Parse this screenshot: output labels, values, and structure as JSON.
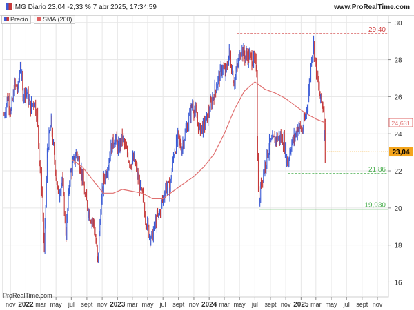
{
  "header": {
    "title": "IMG Diario 23,04 -2,33 % 7 abr 2025, 17:34:59",
    "brand": "www.ProRealTime.com"
  },
  "legend": {
    "items": [
      {
        "label": "Precio",
        "color": "#3b5bd6"
      },
      {
        "label": "SMA (200)",
        "color": "#e06060"
      }
    ]
  },
  "footer": {
    "watermark": "ProRealTime.com"
  },
  "colors": {
    "up": "#3b5bd6",
    "down": "#c63a3a",
    "sma": "#e07070",
    "grid": "#e6e6e6",
    "ref_red": "#d04040",
    "ref_green": "#4caf50",
    "last_price_bg": "#f4a51c"
  },
  "chart_data": {
    "type": "line",
    "x_axis": {
      "range": [
        "2021-10-01",
        "2025-12-15"
      ],
      "ticks": [
        {
          "x": "2021-11-01",
          "label": "nov",
          "bold": false
        },
        {
          "x": "2022-01-01",
          "label": "2022",
          "bold": true
        },
        {
          "x": "2022-03-01",
          "label": "mar",
          "bold": false
        },
        {
          "x": "2022-05-01",
          "label": "may",
          "bold": false
        },
        {
          "x": "2022-07-01",
          "label": "jul",
          "bold": false
        },
        {
          "x": "2022-09-01",
          "label": "sept",
          "bold": false
        },
        {
          "x": "2022-11-01",
          "label": "nov",
          "bold": false
        },
        {
          "x": "2023-01-01",
          "label": "2023",
          "bold": true
        },
        {
          "x": "2023-03-01",
          "label": "mar",
          "bold": false
        },
        {
          "x": "2023-05-01",
          "label": "may",
          "bold": false
        },
        {
          "x": "2023-07-01",
          "label": "jul",
          "bold": false
        },
        {
          "x": "2023-09-01",
          "label": "sept",
          "bold": false
        },
        {
          "x": "2023-11-01",
          "label": "nov",
          "bold": false
        },
        {
          "x": "2024-01-01",
          "label": "2024",
          "bold": true
        },
        {
          "x": "2024-03-01",
          "label": "mar",
          "bold": false
        },
        {
          "x": "2024-05-01",
          "label": "may",
          "bold": false
        },
        {
          "x": "2024-07-01",
          "label": "jul",
          "bold": false
        },
        {
          "x": "2024-09-01",
          "label": "sept",
          "bold": false
        },
        {
          "x": "2024-11-01",
          "label": "nov",
          "bold": false
        },
        {
          "x": "2025-01-01",
          "label": "2025",
          "bold": true
        },
        {
          "x": "2025-03-01",
          "label": "mar",
          "bold": false
        },
        {
          "x": "2025-05-01",
          "label": "may",
          "bold": false
        },
        {
          "x": "2025-07-01",
          "label": "jul",
          "bold": false
        },
        {
          "x": "2025-09-01",
          "label": "sept",
          "bold": false
        },
        {
          "x": "2025-11-01",
          "label": "nov",
          "bold": false
        }
      ]
    },
    "y_axis": {
      "range": [
        15.2,
        30.4
      ],
      "ticks": [
        16,
        18,
        20,
        22,
        24,
        26,
        28,
        30
      ]
    },
    "grid": true,
    "series": [
      {
        "name": "Precio",
        "style": "ohlc-bars",
        "points": [
          [
            "2021-10-06",
            25.0
          ],
          [
            "2021-10-20",
            26.0
          ],
          [
            "2021-11-03",
            25.2
          ],
          [
            "2021-11-17",
            26.6
          ],
          [
            "2021-12-01",
            26.4
          ],
          [
            "2021-12-10",
            27.8
          ],
          [
            "2021-12-20",
            26.2
          ],
          [
            "2022-01-05",
            26.2
          ],
          [
            "2022-01-20",
            25.4
          ],
          [
            "2022-02-03",
            25.8
          ],
          [
            "2022-02-14",
            25.0
          ],
          [
            "2022-02-24",
            22.6
          ],
          [
            "2022-03-07",
            20.8
          ],
          [
            "2022-03-15",
            17.6
          ],
          [
            "2022-03-28",
            23.2
          ],
          [
            "2022-04-12",
            24.6
          ],
          [
            "2022-04-25",
            22.6
          ],
          [
            "2022-05-10",
            20.6
          ],
          [
            "2022-05-25",
            21.6
          ],
          [
            "2022-06-10",
            18.6
          ],
          [
            "2022-06-24",
            21.6
          ],
          [
            "2022-07-08",
            22.4
          ],
          [
            "2022-07-22",
            23.0
          ],
          [
            "2022-08-10",
            22.0
          ],
          [
            "2022-08-25",
            20.6
          ],
          [
            "2022-09-12",
            19.6
          ],
          [
            "2022-09-28",
            19.2
          ],
          [
            "2022-10-10",
            17.8
          ],
          [
            "2022-10-14",
            17.0
          ],
          [
            "2022-10-26",
            20.0
          ],
          [
            "2022-11-08",
            21.6
          ],
          [
            "2022-11-22",
            22.2
          ],
          [
            "2022-12-06",
            23.2
          ],
          [
            "2022-12-20",
            23.8
          ],
          [
            "2023-01-05",
            23.2
          ],
          [
            "2023-01-20",
            23.8
          ],
          [
            "2023-02-06",
            23.0
          ],
          [
            "2023-02-22",
            22.4
          ],
          [
            "2023-03-08",
            22.6
          ],
          [
            "2023-03-24",
            21.6
          ],
          [
            "2023-04-10",
            20.6
          ],
          [
            "2023-04-24",
            19.4
          ],
          [
            "2023-05-08",
            18.6
          ],
          [
            "2023-05-18",
            18.4
          ],
          [
            "2023-06-01",
            19.2
          ],
          [
            "2023-06-15",
            19.6
          ],
          [
            "2023-06-29",
            20.4
          ],
          [
            "2023-07-12",
            21.2
          ],
          [
            "2023-07-28",
            21.0
          ],
          [
            "2023-08-14",
            23.0
          ],
          [
            "2023-08-29",
            23.8
          ],
          [
            "2023-09-12",
            23.2
          ],
          [
            "2023-09-27",
            24.0
          ],
          [
            "2023-10-12",
            24.8
          ],
          [
            "2023-10-26",
            25.6
          ],
          [
            "2023-11-10",
            25.0
          ],
          [
            "2023-11-24",
            24.2
          ],
          [
            "2023-12-08",
            24.4
          ],
          [
            "2023-12-22",
            24.8
          ],
          [
            "2024-01-08",
            25.6
          ],
          [
            "2024-01-24",
            26.4
          ],
          [
            "2024-02-08",
            27.0
          ],
          [
            "2024-02-22",
            27.6
          ],
          [
            "2024-03-07",
            27.2
          ],
          [
            "2024-03-21",
            28.4
          ],
          [
            "2024-04-08",
            26.8
          ],
          [
            "2024-04-22",
            27.6
          ],
          [
            "2024-05-08",
            28.6
          ],
          [
            "2024-05-22",
            28.2
          ],
          [
            "2024-06-07",
            28.2
          ],
          [
            "2024-06-20",
            28.0
          ],
          [
            "2024-07-03",
            27.8
          ],
          [
            "2024-07-08",
            27.6
          ],
          [
            "2024-07-12",
            22.6
          ],
          [
            "2024-07-18",
            20.0
          ],
          [
            "2024-07-26",
            21.4
          ],
          [
            "2024-08-12",
            22.4
          ],
          [
            "2024-08-28",
            23.4
          ],
          [
            "2024-09-12",
            23.6
          ],
          [
            "2024-09-26",
            23.8
          ],
          [
            "2024-10-10",
            23.8
          ],
          [
            "2024-10-24",
            23.6
          ],
          [
            "2024-11-08",
            22.4
          ],
          [
            "2024-11-22",
            23.4
          ],
          [
            "2024-12-06",
            23.8
          ],
          [
            "2024-12-20",
            24.4
          ],
          [
            "2025-01-06",
            24.2
          ],
          [
            "2025-01-20",
            25.0
          ],
          [
            "2025-02-03",
            26.6
          ],
          [
            "2025-02-12",
            28.2
          ],
          [
            "2025-02-20",
            28.8
          ],
          [
            "2025-03-03",
            27.4
          ],
          [
            "2025-03-12",
            26.4
          ],
          [
            "2025-03-20",
            25.8
          ],
          [
            "2025-03-31",
            25.4
          ],
          [
            "2025-04-04",
            23.9
          ],
          [
            "2025-04-07",
            23.04
          ]
        ]
      },
      {
        "name": "SMA (200)",
        "style": "line",
        "points": [
          [
            "2022-07-05",
            22.6
          ],
          [
            "2022-08-15",
            22.2
          ],
          [
            "2022-09-25",
            21.5
          ],
          [
            "2022-11-05",
            20.8
          ],
          [
            "2022-12-15",
            20.8
          ],
          [
            "2023-01-20",
            21.0
          ],
          [
            "2023-03-01",
            20.9
          ],
          [
            "2023-04-10",
            20.8
          ],
          [
            "2023-05-20",
            20.5
          ],
          [
            "2023-07-01",
            20.5
          ],
          [
            "2023-08-10",
            20.9
          ],
          [
            "2023-09-20",
            21.3
          ],
          [
            "2023-11-01",
            21.7
          ],
          [
            "2023-12-10",
            22.2
          ],
          [
            "2024-01-20",
            22.9
          ],
          [
            "2024-03-01",
            24.0
          ],
          [
            "2024-04-10",
            25.3
          ],
          [
            "2024-05-20",
            26.3
          ],
          [
            "2024-07-01",
            26.8
          ],
          [
            "2024-08-10",
            26.4
          ],
          [
            "2024-09-20",
            26.2
          ],
          [
            "2024-11-01",
            25.9
          ],
          [
            "2024-12-10",
            25.5
          ],
          [
            "2025-01-20",
            25.1
          ],
          [
            "2025-03-01",
            24.8
          ],
          [
            "2025-04-07",
            24.6
          ]
        ]
      }
    ],
    "reference_lines": [
      {
        "value": 29.4,
        "label": "29,40",
        "color": "#d04040",
        "dash": true,
        "from": "2024-04-20"
      },
      {
        "value": 21.86,
        "label": "21,86",
        "color": "#4caf50",
        "dash": true,
        "from": "2024-11-10"
      },
      {
        "value": 19.93,
        "label": "19,930",
        "color": "#4caf50",
        "dash": false,
        "from": "2024-07-18"
      }
    ],
    "sma_last_label": "24,631",
    "last_price_label": "23,04",
    "last_price_value": 23.04
  }
}
